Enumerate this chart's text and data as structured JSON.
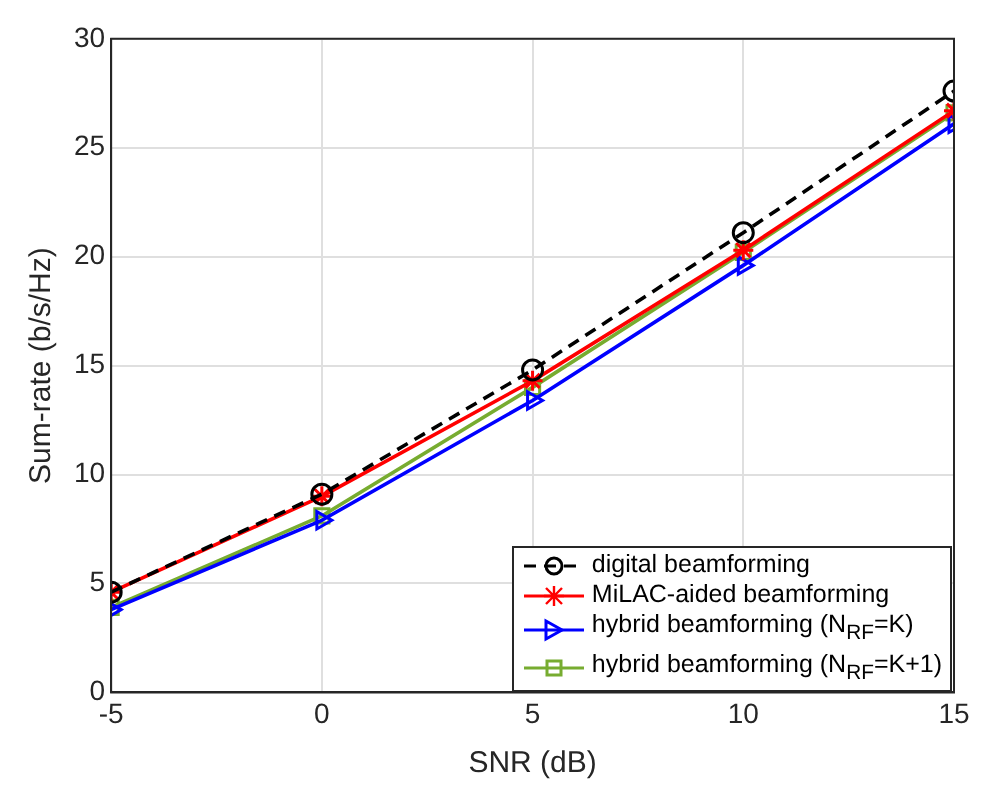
{
  "chart_data": {
    "type": "line",
    "xlabel": "SNR (dB)",
    "ylabel": "Sum-rate (b/s/Hz)",
    "x": [
      -5,
      0,
      5,
      10,
      15
    ],
    "xlim": [
      -5,
      15
    ],
    "xticks": [
      -5,
      0,
      5,
      10,
      15
    ],
    "ylim": [
      0,
      30
    ],
    "yticks": [
      0,
      5,
      10,
      15,
      20,
      25,
      30
    ],
    "grid": true,
    "legend": "bottom right",
    "series": [
      {
        "name": "digital beamforming",
        "color": "#000000",
        "values": [
          4.6,
          9.1,
          14.8,
          21.1,
          27.6
        ],
        "marker": "circle",
        "line_style": "dashed"
      },
      {
        "name": "MiLAC-aided beamforming",
        "color": "#ff0000",
        "values": [
          4.6,
          9.0,
          14.3,
          20.3,
          26.7
        ],
        "marker": "cross",
        "line_style": "solid"
      },
      {
        "name": "hybrid beamforming (N$_{RF}$=K)",
        "color": "#0000ff",
        "values": [
          3.8,
          7.9,
          13.4,
          19.6,
          26.1
        ],
        "marker": "triangle",
        "line_style": "solid"
      },
      {
        "name": "hybrid beamforming (N$_{RF}$=K+1)",
        "color": "#77ac30",
        "values": [
          3.9,
          8.1,
          14.0,
          20.2,
          26.6
        ],
        "marker": "square",
        "line_style": "solid"
      }
    ]
  }
}
